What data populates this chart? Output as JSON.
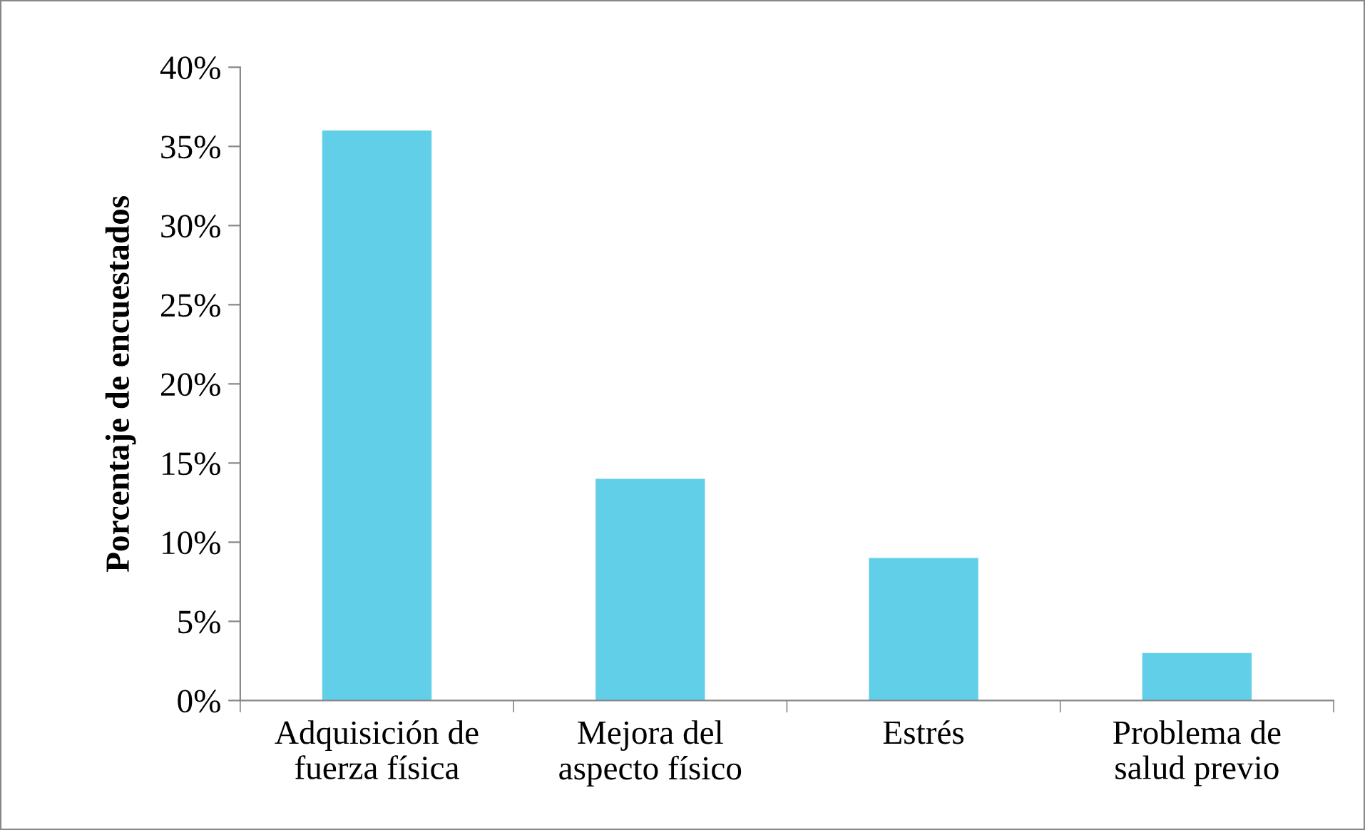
{
  "chart_data": {
    "type": "bar",
    "ylabel": "Porcentaje de encuestados",
    "categories": [
      "Adquisición de\nfuerza física",
      "Mejora del\naspecto físico",
      "Estrés",
      "Problema de\nsalud previo"
    ],
    "values": [
      36,
      14,
      9,
      3
    ],
    "color": "#62cfe8",
    "ylim": [
      0,
      40
    ],
    "yticks": [
      {
        "value": 0,
        "label": "0%"
      },
      {
        "value": 5,
        "label": "5%"
      },
      {
        "value": 10,
        "label": "10%"
      },
      {
        "value": 15,
        "label": "15%"
      },
      {
        "value": 20,
        "label": "20%"
      },
      {
        "value": 25,
        "label": "25%"
      },
      {
        "value": 30,
        "label": "30%"
      },
      {
        "value": 35,
        "label": "35%"
      },
      {
        "value": 40,
        "label": "40%"
      }
    ],
    "grid": false,
    "legend": false
  }
}
